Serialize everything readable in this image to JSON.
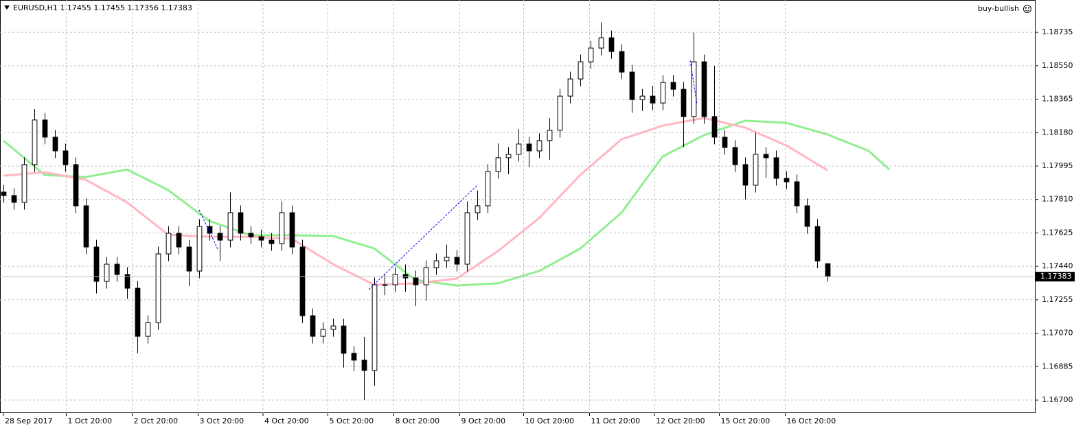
{
  "chart_data": {
    "type": "candlestick",
    "symbol": "EURUSD,H1",
    "signal": "buy-bullish",
    "x": [
      0,
      1,
      2,
      3,
      4,
      5,
      6,
      7,
      8,
      9,
      10,
      11,
      12,
      13,
      14,
      15,
      16,
      17,
      18,
      19,
      20,
      21,
      22,
      23,
      24,
      25,
      26,
      27,
      28,
      29,
      30,
      31,
      32,
      33,
      34,
      35,
      36,
      37,
      38,
      39,
      40,
      41,
      42,
      43,
      44,
      45,
      46,
      47,
      48,
      49,
      50,
      51,
      52,
      53,
      54,
      55,
      56,
      57,
      58,
      59,
      60,
      61,
      62,
      63,
      64,
      65,
      66,
      67,
      68,
      69,
      70,
      71,
      72,
      73,
      74,
      75,
      76,
      77,
      78,
      79,
      80
    ],
    "open": [
      1.17851,
      1.17832,
      1.17794,
      1.18003,
      1.1825,
      1.18155,
      1.18079,
      1.18003,
      1.17775,
      1.17547,
      1.17357,
      1.17452,
      1.17395,
      1.17319,
      1.17053,
      1.17129,
      1.17509,
      1.17623,
      1.17547,
      1.17414,
      1.17661,
      1.17623,
      1.17585,
      1.17737,
      1.17623,
      1.17604,
      1.17585,
      1.17566,
      1.17737,
      1.17547,
      1.17167,
      1.17053,
      1.17091,
      1.1711,
      1.16959,
      1.16921,
      1.16864,
      1.17338,
      1.17338,
      1.17395,
      1.17376,
      1.17338,
      1.17433,
      1.17471,
      1.1749,
      1.17452,
      1.17737,
      1.17775,
      1.17965,
      1.18041,
      1.1806,
      1.18117,
      1.18079,
      1.18136,
      1.18193,
      1.18382,
      1.18477,
      1.18572,
      1.18648,
      1.18705,
      1.18629,
      1.18515,
      1.18363,
      1.18382,
      1.18344,
      1.18458,
      1.1842,
      1.18269,
      1.18572,
      1.18269,
      1.18155,
      1.18098,
      1.18003,
      1.17889,
      1.1806,
      1.18041,
      1.17927,
      1.17908,
      1.17775,
      1.17661,
      1.17455
    ],
    "high": [
      1.17891,
      1.17872,
      1.18043,
      1.1831,
      1.1829,
      1.18195,
      1.18119,
      1.18043,
      1.17815,
      1.17587,
      1.17492,
      1.17492,
      1.17435,
      1.17359,
      1.17169,
      1.17549,
      1.17663,
      1.17663,
      1.17587,
      1.17701,
      1.17701,
      1.17663,
      1.1785,
      1.17777,
      1.17663,
      1.17644,
      1.17625,
      1.178,
      1.17777,
      1.17587,
      1.17207,
      1.17131,
      1.1715,
      1.1715,
      1.16999,
      1.1705,
      1.17378,
      1.174,
      1.17435,
      1.1745,
      1.17416,
      1.17473,
      1.17511,
      1.1756,
      1.1753,
      1.178,
      1.1786,
      1.18005,
      1.1812,
      1.181,
      1.182,
      1.18157,
      1.18176,
      1.1826,
      1.18422,
      1.18517,
      1.18612,
      1.18688,
      1.1879,
      1.18745,
      1.18669,
      1.18555,
      1.18422,
      1.1844,
      1.18498,
      1.18498,
      1.1846,
      1.18733,
      1.18612,
      1.1855,
      1.18195,
      1.18138,
      1.18043,
      1.1818,
      1.181,
      1.18081,
      1.17967,
      1.17948,
      1.17815,
      1.17701,
      1.17455
    ],
    "low": [
      1.17792,
      1.17754,
      1.17754,
      1.17963,
      1.18115,
      1.18039,
      1.17963,
      1.17735,
      1.17507,
      1.1729,
      1.17317,
      1.17355,
      1.1726,
      1.1696,
      1.17013,
      1.17089,
      1.17469,
      1.17507,
      1.1733,
      1.17374,
      1.17583,
      1.1747,
      1.17545,
      1.17583,
      1.17564,
      1.17545,
      1.17526,
      1.17526,
      1.17507,
      1.17127,
      1.17013,
      1.17013,
      1.17051,
      1.1688,
      1.1686,
      1.167,
      1.1678,
      1.1728,
      1.17298,
      1.173,
      1.1722,
      1.1725,
      1.17393,
      1.17431,
      1.17412,
      1.17412,
      1.17697,
      1.17735,
      1.17925,
      1.1795,
      1.1802,
      1.1799,
      1.18039,
      1.1803,
      1.18153,
      1.18342,
      1.18437,
      1.18532,
      1.18608,
      1.18589,
      1.18475,
      1.1829,
      1.183,
      1.18304,
      1.18304,
      1.1838,
      1.181,
      1.18229,
      1.18229,
      1.18115,
      1.18058,
      1.17963,
      1.1781,
      1.17849,
      1.1793,
      1.17887,
      1.17868,
      1.17735,
      1.17621,
      1.1743,
      1.17356
    ],
    "close": [
      1.17832,
      1.17794,
      1.18003,
      1.1825,
      1.18155,
      1.18079,
      1.18003,
      1.17775,
      1.17547,
      1.17357,
      1.17452,
      1.17395,
      1.17319,
      1.17053,
      1.17129,
      1.17509,
      1.17623,
      1.17547,
      1.17414,
      1.17661,
      1.17623,
      1.17585,
      1.17737,
      1.17623,
      1.17604,
      1.17585,
      1.17566,
      1.17737,
      1.17547,
      1.17167,
      1.17053,
      1.17091,
      1.1711,
      1.16959,
      1.16921,
      1.16864,
      1.17338,
      1.17338,
      1.17395,
      1.17376,
      1.17338,
      1.17433,
      1.17471,
      1.1749,
      1.17452,
      1.17737,
      1.17775,
      1.17965,
      1.18041,
      1.1806,
      1.18117,
      1.18079,
      1.18136,
      1.18193,
      1.18382,
      1.18477,
      1.18572,
      1.18648,
      1.18705,
      1.18629,
      1.18515,
      1.18363,
      1.18382,
      1.18344,
      1.18458,
      1.1842,
      1.18269,
      1.18572,
      1.18269,
      1.18155,
      1.18098,
      1.18003,
      1.17889,
      1.1806,
      1.18041,
      1.17927,
      1.17908,
      1.17775,
      1.17661,
      1.1747,
      1.17383
    ],
    "series": [
      {
        "color": "#90ee90",
        "x": [
          0,
          4,
          8,
          12,
          16,
          20,
          24,
          28,
          32,
          36,
          40,
          44,
          48,
          52,
          56,
          60,
          64,
          68,
          72,
          76,
          80,
          84,
          86
        ],
        "values": [
          1.18136,
          1.17946,
          1.17934,
          1.17976,
          1.17862,
          1.17691,
          1.17612,
          1.17612,
          1.17608,
          1.17539,
          1.17365,
          1.17334,
          1.17346,
          1.17414,
          1.17539,
          1.17737,
          1.18048,
          1.18166,
          1.18246,
          1.18234,
          1.1817,
          1.18079,
          1.17976
        ]
      },
      {
        "color": "#ffb6c1",
        "x": [
          0,
          4,
          8,
          12,
          16,
          20,
          24,
          28,
          32,
          36,
          40,
          44,
          48,
          52,
          56,
          60,
          64,
          68,
          72,
          76,
          80
        ],
        "values": [
          1.17942,
          1.17961,
          1.17919,
          1.17794,
          1.17615,
          1.17604,
          1.17604,
          1.17593,
          1.17452,
          1.17338,
          1.17346,
          1.17372,
          1.17524,
          1.17707,
          1.17946,
          1.18143,
          1.18219,
          1.18261,
          1.18208,
          1.18109,
          1.17972
        ]
      }
    ],
    "xlim": [
      -0.33,
      100.2
    ],
    "xticks": [
      {
        "value": 0,
        "label": "28 Sep 2017"
      },
      {
        "value": 6.1,
        "label": "1 Oct 20:00"
      },
      {
        "value": 12.5,
        "label": "2 Oct 20:00"
      },
      {
        "value": 18.9,
        "label": "3 Oct 20:00"
      },
      {
        "value": 25.2,
        "label": "4 Oct 20:00"
      },
      {
        "value": 31.5,
        "label": "5 Oct 20:00"
      },
      {
        "value": 37.9,
        "label": "8 Oct 20:00"
      },
      {
        "value": 44.3,
        "label": "9 Oct 20:00"
      },
      {
        "value": 50.5,
        "label": "10 Oct 20:00"
      },
      {
        "value": 56.9,
        "label": "11 Oct 20:00"
      },
      {
        "value": 63.2,
        "label": "12 Oct 20:00"
      },
      {
        "value": 69.5,
        "label": "15 Oct 20:00"
      },
      {
        "value": 75.9,
        "label": "16 Oct 20:00"
      }
    ],
    "ylim": [
      1.16628,
      1.18914
    ],
    "yticks": [
      1.18735,
      {
        "value": 1.1855,
        "label": "1.18550"
      },
      1.18365,
      {
        "value": 1.1818,
        "label": "1.18180"
      },
      1.17995,
      {
        "value": 1.1781,
        "label": "1.17810"
      },
      1.17625,
      {
        "value": 1.1744,
        "label": "1.17440"
      },
      1.17255,
      {
        "value": 1.1707,
        "label": "1.17070"
      },
      1.16885,
      {
        "value": 1.167,
        "label": "1.16700"
      }
    ],
    "grid": true
  }
}
